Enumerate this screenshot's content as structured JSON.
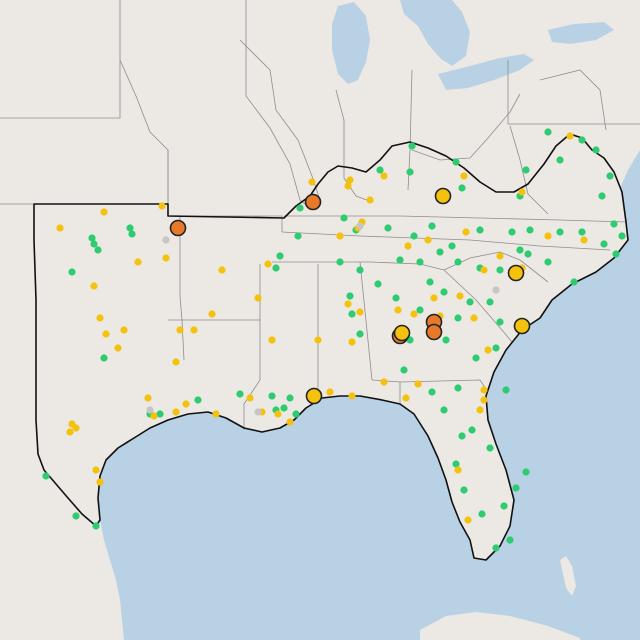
{
  "map": {
    "kind": "station status map",
    "colors": {
      "green": "#2ecc71",
      "yellow": "#f4c20d",
      "gray": "#c6c6c6",
      "orange": "#e8782a"
    }
  },
  "legend_counts": {}
}
